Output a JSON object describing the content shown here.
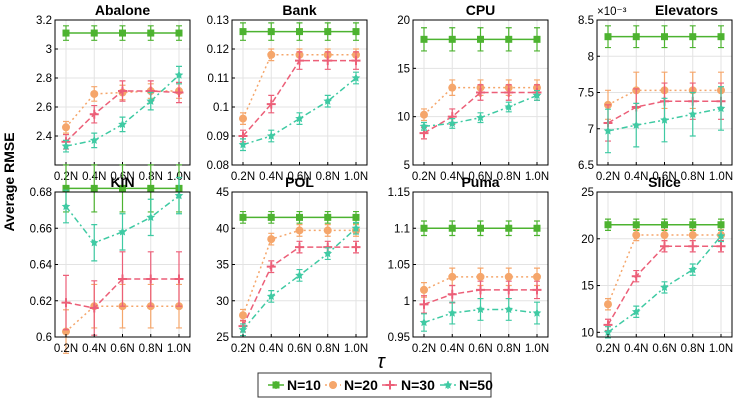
{
  "figure": {
    "ylabel": "Average RMSE",
    "xlabel": "τ",
    "legend": [
      "N=10",
      "N=20",
      "N=30",
      "N=50"
    ],
    "series_colors": [
      "#4db330",
      "#f5a66b",
      "#ec5f78",
      "#3fcaa3"
    ]
  },
  "chart_data": [
    {
      "type": "line",
      "title": "Abalone",
      "x": [
        "0.2N",
        "0.4N",
        "0.6N",
        "0.8N",
        "1.0N"
      ],
      "ylim": [
        2.2,
        3.2
      ],
      "yticks": [
        2.4,
        2.6,
        2.8,
        3.0,
        3.2
      ],
      "yticklabels": [
        "2.4",
        "2.6",
        "2.8",
        "3",
        "3.2"
      ],
      "exponent": "",
      "series": [
        {
          "name": "N=10",
          "values": [
            3.11,
            3.11,
            3.11,
            3.11,
            3.11
          ],
          "errors": [
            0.05,
            0.05,
            0.05,
            0.05,
            0.05
          ]
        },
        {
          "name": "N=20",
          "values": [
            2.46,
            2.69,
            2.7,
            2.71,
            2.71
          ],
          "errors": [
            0.04,
            0.05,
            0.05,
            0.05,
            0.05
          ]
        },
        {
          "name": "N=30",
          "values": [
            2.36,
            2.55,
            2.71,
            2.71,
            2.7
          ],
          "errors": [
            0.05,
            0.06,
            0.07,
            0.07,
            0.07
          ]
        },
        {
          "name": "N=50",
          "values": [
            2.33,
            2.37,
            2.48,
            2.64,
            2.82
          ],
          "errors": [
            0.04,
            0.05,
            0.05,
            0.06,
            0.06
          ]
        }
      ]
    },
    {
      "type": "line",
      "title": "Bank",
      "x": [
        "0.2N",
        "0.4N",
        "0.6N",
        "0.8N",
        "1.0N"
      ],
      "ylim": [
        0.08,
        0.13
      ],
      "yticks": [
        0.08,
        0.09,
        0.1,
        0.11,
        0.12,
        0.13
      ],
      "yticklabels": [
        "0.08",
        "0.09",
        "0.1",
        "0.11",
        "0.12",
        "0.13"
      ],
      "exponent": "",
      "series": [
        {
          "name": "N=10",
          "values": [
            0.126,
            0.126,
            0.126,
            0.126,
            0.126
          ],
          "errors": [
            0.003,
            0.003,
            0.003,
            0.003,
            0.003
          ]
        },
        {
          "name": "N=20",
          "values": [
            0.096,
            0.118,
            0.118,
            0.118,
            0.118
          ],
          "errors": [
            0.002,
            0.002,
            0.002,
            0.002,
            0.002
          ]
        },
        {
          "name": "N=30",
          "values": [
            0.09,
            0.101,
            0.116,
            0.116,
            0.116
          ],
          "errors": [
            0.002,
            0.003,
            0.003,
            0.003,
            0.003
          ]
        },
        {
          "name": "N=50",
          "values": [
            0.087,
            0.09,
            0.096,
            0.102,
            0.11
          ],
          "errors": [
            0.002,
            0.002,
            0.002,
            0.002,
            0.002
          ]
        }
      ]
    },
    {
      "type": "line",
      "title": "CPU",
      "x": [
        "0.2N",
        "0.4N",
        "0.6N",
        "0.8N",
        "1.0N"
      ],
      "ylim": [
        5,
        20
      ],
      "yticks": [
        5,
        10,
        15,
        20
      ],
      "yticklabels": [
        "5",
        "10",
        "15",
        "20"
      ],
      "exponent": "",
      "series": [
        {
          "name": "N=10",
          "values": [
            18.0,
            18.0,
            18.0,
            18.0,
            18.0
          ],
          "errors": [
            1.2,
            1.2,
            1.2,
            1.2,
            1.2
          ]
        },
        {
          "name": "N=20",
          "values": [
            10.2,
            13.0,
            13.0,
            13.0,
            13.0
          ],
          "errors": [
            0.6,
            0.8,
            0.8,
            0.8,
            0.8
          ]
        },
        {
          "name": "N=30",
          "values": [
            8.3,
            10.0,
            12.5,
            12.5,
            12.5
          ],
          "errors": [
            0.6,
            0.8,
            0.8,
            0.8,
            0.8
          ]
        },
        {
          "name": "N=50",
          "values": [
            9.0,
            9.3,
            9.9,
            11.0,
            12.2
          ],
          "errors": [
            0.4,
            0.5,
            0.5,
            0.5,
            0.5
          ]
        }
      ]
    },
    {
      "type": "line",
      "title": "Elevators",
      "x": [
        "0.2N",
        "0.4N",
        "0.6N",
        "0.8N",
        "1.0N"
      ],
      "ylim": [
        6.5,
        8.5
      ],
      "yticks": [
        6.5,
        7,
        7.5,
        8,
        8.5
      ],
      "yticklabels": [
        "6.5",
        "7",
        "7.5",
        "8",
        "8.5"
      ],
      "exponent": "×10⁻³",
      "series": [
        {
          "name": "N=10",
          "values": [
            8.27,
            8.27,
            8.27,
            8.27,
            8.27
          ],
          "errors": [
            0.15,
            0.15,
            0.15,
            0.15,
            0.15
          ]
        },
        {
          "name": "N=20",
          "values": [
            7.33,
            7.53,
            7.53,
            7.53,
            7.53
          ],
          "errors": [
            0.2,
            0.25,
            0.25,
            0.25,
            0.25
          ]
        },
        {
          "name": "N=30",
          "values": [
            7.08,
            7.3,
            7.38,
            7.38,
            7.38
          ],
          "errors": [
            0.25,
            0.25,
            0.25,
            0.25,
            0.25
          ]
        },
        {
          "name": "N=50",
          "values": [
            6.97,
            7.05,
            7.12,
            7.2,
            7.28
          ],
          "errors": [
            0.3,
            0.3,
            0.3,
            0.3,
            0.3
          ]
        }
      ]
    },
    {
      "type": "line",
      "title": "KIN",
      "x": [
        "0.2N",
        "0.4N",
        "0.6N",
        "0.8N",
        "1.0N"
      ],
      "ylim": [
        0.6,
        0.68
      ],
      "yticks": [
        0.6,
        0.62,
        0.64,
        0.66,
        0.68
      ],
      "yticklabels": [
        "0.6",
        "0.62",
        "0.64",
        "0.66",
        "0.68"
      ],
      "exponent": "",
      "series": [
        {
          "name": "N=10",
          "values": [
            0.682,
            0.682,
            0.682,
            0.682,
            0.682
          ],
          "errors": [
            0.013,
            0.013,
            0.013,
            0.013,
            0.013
          ]
        },
        {
          "name": "N=20",
          "values": [
            0.603,
            0.617,
            0.617,
            0.617,
            0.617
          ],
          "errors": [
            0.012,
            0.012,
            0.012,
            0.012,
            0.012
          ]
        },
        {
          "name": "N=30",
          "values": [
            0.619,
            0.616,
            0.632,
            0.632,
            0.632
          ],
          "errors": [
            0.015,
            0.015,
            0.015,
            0.015,
            0.015
          ]
        },
        {
          "name": "N=50",
          "values": [
            0.672,
            0.652,
            0.658,
            0.666,
            0.678
          ],
          "errors": [
            0.009,
            0.01,
            0.01,
            0.01,
            0.01
          ]
        }
      ]
    },
    {
      "type": "line",
      "title": "POL",
      "x": [
        "0.2N",
        "0.4N",
        "0.6N",
        "0.8N",
        "1.0N"
      ],
      "ylim": [
        25,
        45
      ],
      "yticks": [
        25,
        30,
        35,
        40,
        45
      ],
      "yticklabels": [
        "25",
        "30",
        "35",
        "40",
        "45"
      ],
      "exponent": "",
      "series": [
        {
          "name": "N=10",
          "values": [
            41.5,
            41.5,
            41.5,
            41.5,
            41.5
          ],
          "errors": [
            0.8,
            0.8,
            0.8,
            0.8,
            0.8
          ]
        },
        {
          "name": "N=20",
          "values": [
            28.0,
            38.5,
            39.7,
            39.7,
            39.7
          ],
          "errors": [
            0.8,
            0.8,
            0.8,
            0.8,
            0.8
          ]
        },
        {
          "name": "N=30",
          "values": [
            26.5,
            34.7,
            37.4,
            37.4,
            37.4
          ],
          "errors": [
            0.8,
            0.8,
            0.8,
            0.8,
            0.8
          ]
        },
        {
          "name": "N=50",
          "values": [
            26.0,
            30.6,
            33.5,
            36.5,
            40.0
          ],
          "errors": [
            0.8,
            0.8,
            0.8,
            0.8,
            0.8
          ]
        }
      ]
    },
    {
      "type": "line",
      "title": "Puma",
      "x": [
        "0.2N",
        "0.4N",
        "0.6N",
        "0.8N",
        "1.0N"
      ],
      "ylim": [
        0.95,
        1.15
      ],
      "yticks": [
        0.95,
        1.0,
        1.05,
        1.1,
        1.15
      ],
      "yticklabels": [
        "0.95",
        "1",
        "1.05",
        "1.1",
        "1.15"
      ],
      "exponent": "",
      "series": [
        {
          "name": "N=10",
          "values": [
            1.1,
            1.1,
            1.1,
            1.1,
            1.1
          ],
          "errors": [
            0.01,
            0.01,
            0.01,
            0.01,
            0.01
          ]
        },
        {
          "name": "N=20",
          "values": [
            1.015,
            1.033,
            1.033,
            1.033,
            1.033
          ],
          "errors": [
            0.01,
            0.012,
            0.012,
            0.012,
            0.012
          ]
        },
        {
          "name": "N=30",
          "values": [
            0.995,
            1.009,
            1.015,
            1.015,
            1.015
          ],
          "errors": [
            0.012,
            0.012,
            0.012,
            0.012,
            0.012
          ]
        },
        {
          "name": "N=50",
          "values": [
            0.97,
            0.983,
            0.988,
            0.988,
            0.983
          ],
          "errors": [
            0.012,
            0.015,
            0.015,
            0.015,
            0.015
          ]
        }
      ]
    },
    {
      "type": "line",
      "title": "Slice",
      "x": [
        "0.2N",
        "0.4N",
        "0.6N",
        "0.8N",
        "1.0N"
      ],
      "ylim": [
        9.5,
        25
      ],
      "yticks": [
        10,
        15,
        20,
        25
      ],
      "yticklabels": [
        "10",
        "15",
        "20",
        "25"
      ],
      "exponent": "",
      "series": [
        {
          "name": "N=10",
          "values": [
            21.5,
            21.5,
            21.5,
            21.5,
            21.5
          ],
          "errors": [
            0.6,
            0.6,
            0.6,
            0.6,
            0.6
          ]
        },
        {
          "name": "N=20",
          "values": [
            13.0,
            20.4,
            20.4,
            20.4,
            20.4
          ],
          "errors": [
            0.6,
            0.6,
            0.6,
            0.6,
            0.6
          ]
        },
        {
          "name": "N=30",
          "values": [
            10.8,
            16.0,
            19.2,
            19.2,
            19.2
          ],
          "errors": [
            0.6,
            0.6,
            0.6,
            0.6,
            0.6
          ]
        },
        {
          "name": "N=50",
          "values": [
            10.0,
            12.2,
            14.8,
            16.7,
            20.3
          ],
          "errors": [
            0.6,
            0.6,
            0.6,
            0.6,
            0.6
          ]
        }
      ]
    }
  ]
}
